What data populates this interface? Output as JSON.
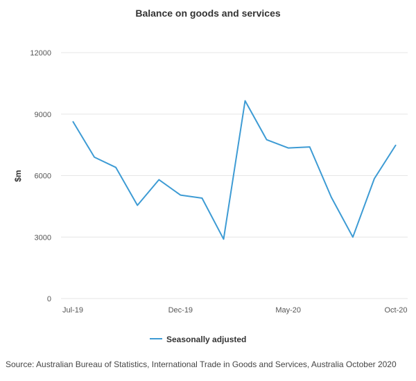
{
  "chart_data": {
    "type": "line",
    "title": "Balance on goods and services",
    "ylabel": "$m",
    "xlabel": "",
    "ylim": [
      0,
      12000
    ],
    "yticks": [
      0,
      3000,
      6000,
      9000,
      12000
    ],
    "x": [
      "Jul-19",
      "Aug-19",
      "Sep-19",
      "Oct-19",
      "Nov-19",
      "Dec-19",
      "Jan-20",
      "Feb-20",
      "Mar-20",
      "Apr-20",
      "May-20",
      "Jun-20",
      "Jul-20",
      "Aug-20",
      "Sep-20",
      "Oct-20"
    ],
    "xtick_labels": [
      "Jul-19",
      "Dec-19",
      "May-20",
      "Oct-20"
    ],
    "series": [
      {
        "name": "Seasonally adjusted",
        "values": [
          8650,
          6900,
          6400,
          4550,
          5800,
          5050,
          4900,
          2900,
          9650,
          7750,
          7350,
          7400,
          4950,
          3000,
          5850,
          7500
        ]
      }
    ],
    "legend": "bottom-center",
    "grid": true,
    "line_color": "#3d9bd4"
  },
  "source": "Source: Australian Bureau of Statistics, International Trade in Goods and Services, Australia October 2020"
}
